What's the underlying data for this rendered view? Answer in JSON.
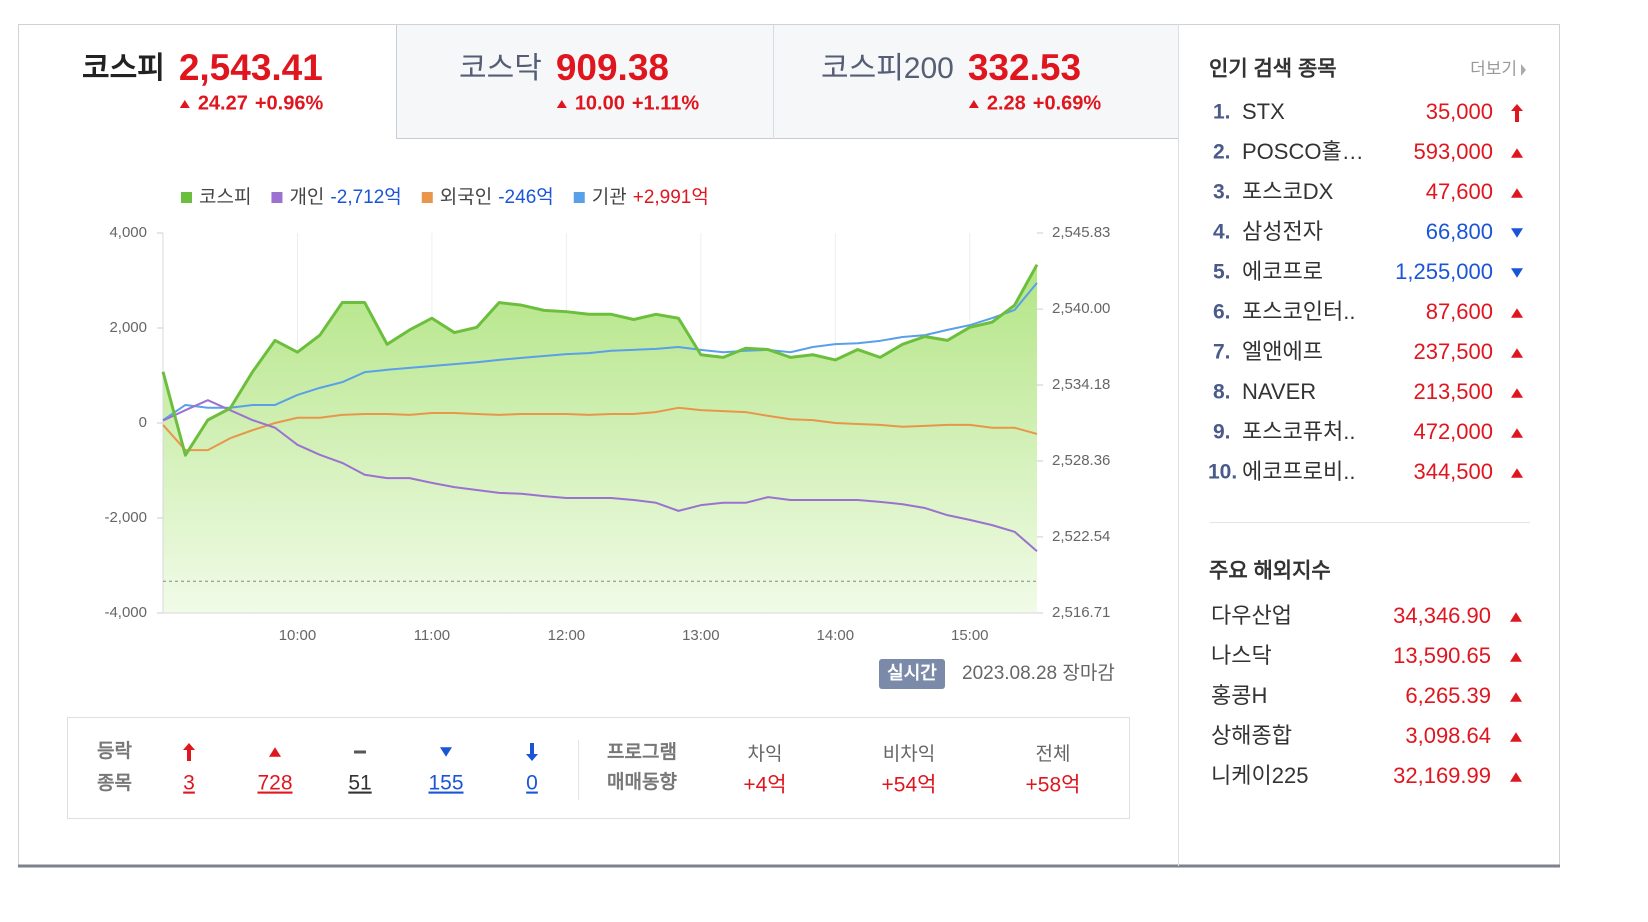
{
  "tabs": [
    {
      "name": "코스피",
      "value": "2,543.41",
      "change": "24.27",
      "rate": "+0.96%"
    },
    {
      "name": "코스닥",
      "value": "909.38",
      "change": "10.00",
      "rate": "+1.11%"
    },
    {
      "name": "코스피200",
      "value": "332.53",
      "change": "2.28",
      "rate": "+0.69%"
    }
  ],
  "chart_data": {
    "type": "line",
    "categories": [
      null,
      null,
      null,
      null,
      null,
      null,
      "10:00",
      null,
      null,
      null,
      null,
      null,
      "11:00",
      null,
      null,
      null,
      null,
      null,
      "12:00",
      null,
      null,
      null,
      null,
      null,
      "13:00",
      null,
      null,
      null,
      null,
      null,
      "14:00",
      null,
      null,
      null,
      null,
      null,
      "15:00",
      null,
      null,
      null
    ],
    "series": [
      {
        "name": "코스피",
        "legend_value": null,
        "color": "#6cbf3c",
        "axis": "y2",
        "values": [
          2535.2,
          2528.8,
          2531.5,
          2532.4,
          2535.2,
          2537.6,
          2536.7,
          2538.0,
          2540.5,
          2540.5,
          2537.3,
          2538.4,
          2539.3,
          2538.2,
          2538.6,
          2540.5,
          2540.3,
          2539.9,
          2539.8,
          2539.6,
          2539.6,
          2539.2,
          2539.6,
          2539.3,
          2536.5,
          2536.3,
          2537.0,
          2536.9,
          2536.3,
          2536.5,
          2536.1,
          2536.9,
          2536.3,
          2537.3,
          2537.9,
          2537.6,
          2538.6,
          2539.0,
          2540.3,
          2543.4
        ]
      },
      {
        "name": "개인",
        "legend_value": "-2,712억",
        "color": "#9b72cf",
        "values": [
          50,
          270,
          480,
          270,
          60,
          -100,
          -460,
          -670,
          -840,
          -1090,
          -1160,
          -1160,
          -1260,
          -1350,
          -1410,
          -1470,
          -1490,
          -1540,
          -1580,
          -1580,
          -1580,
          -1620,
          -1680,
          -1850,
          -1730,
          -1680,
          -1680,
          -1560,
          -1620,
          -1620,
          -1620,
          -1620,
          -1660,
          -1710,
          -1790,
          -1940,
          -2040,
          -2150,
          -2290,
          -2700
        ]
      },
      {
        "name": "외국인",
        "legend_value": "-246억",
        "color": "#e8964a",
        "values": [
          -40,
          -570,
          -570,
          -320,
          -150,
          0,
          110,
          110,
          170,
          190,
          190,
          170,
          210,
          210,
          190,
          170,
          190,
          190,
          190,
          170,
          190,
          190,
          230,
          320,
          270,
          250,
          230,
          150,
          80,
          60,
          0,
          -20,
          -40,
          -80,
          -60,
          -40,
          -40,
          -100,
          -100,
          -230
        ]
      },
      {
        "name": "기관",
        "legend_value": "+2,991억",
        "color": "#5aa0e8",
        "values": [
          60,
          380,
          320,
          320,
          380,
          380,
          590,
          740,
          860,
          1070,
          1120,
          1160,
          1200,
          1240,
          1280,
          1330,
          1370,
          1410,
          1450,
          1470,
          1520,
          1540,
          1560,
          1600,
          1540,
          1490,
          1520,
          1540,
          1490,
          1600,
          1660,
          1680,
          1730,
          1810,
          1850,
          1960,
          2060,
          2210,
          2380,
          2950
        ]
      }
    ],
    "ylim": [
      -4000,
      4000
    ],
    "yticks": [
      {
        "value": 4000,
        "label": "4,000"
      },
      {
        "value": 2000,
        "label": "2,000"
      },
      0,
      {
        "value": -2000,
        "label": "-2,000"
      },
      {
        "value": -4000,
        "label": "-4,000"
      }
    ],
    "y2lim": [
      2516.71,
      2545.83
    ],
    "y2ticks": [
      {
        "value": 2545.83,
        "label": "2,545.83"
      },
      {
        "value": 2540.0,
        "label": "2,540.00"
      },
      {
        "value": 2534.18,
        "label": "2,534.18"
      },
      {
        "value": 2528.36,
        "label": "2,528.36"
      },
      {
        "value": 2522.54,
        "label": "2,522.54"
      },
      {
        "value": 2516.71,
        "label": "2,516.71"
      }
    ],
    "baseline": 2519.14,
    "grid": true
  },
  "status": {
    "badge": "실시간",
    "date": "2023.08.28 장마감"
  },
  "breadth": {
    "title": [
      "등락",
      "종목"
    ],
    "items": [
      {
        "kind": "limit_up",
        "count": 3
      },
      {
        "kind": "up",
        "count": 728
      },
      {
        "kind": "flat",
        "count": 51
      },
      {
        "kind": "down",
        "count": 155
      },
      {
        "kind": "limit_down",
        "count": 0
      }
    ]
  },
  "program": {
    "title": [
      "프로그램",
      "매매동향"
    ],
    "items": [
      {
        "label": "차익",
        "value": "+4억"
      },
      {
        "label": "비차익",
        "value": "+54억"
      },
      {
        "label": "전체",
        "value": "+58억"
      }
    ]
  },
  "popular": {
    "title": "인기 검색 종목",
    "more": "더보기",
    "items": [
      {
        "rank": "1.",
        "name": "STX",
        "price": "35,000",
        "kind": "limit_up"
      },
      {
        "rank": "2.",
        "name": "POSCO홀…",
        "price": "593,000",
        "kind": "up"
      },
      {
        "rank": "3.",
        "name": "포스코DX",
        "price": "47,600",
        "kind": "up"
      },
      {
        "rank": "4.",
        "name": "삼성전자",
        "price": "66,800",
        "kind": "down"
      },
      {
        "rank": "5.",
        "name": "에코프로",
        "price": "1,255,000",
        "kind": "down"
      },
      {
        "rank": "6.",
        "name": "포스코인터..",
        "price": "87,600",
        "kind": "up"
      },
      {
        "rank": "7.",
        "name": "엘앤에프",
        "price": "237,500",
        "kind": "up"
      },
      {
        "rank": "8.",
        "name": "NAVER",
        "price": "213,500",
        "kind": "up"
      },
      {
        "rank": "9.",
        "name": "포스코퓨처..",
        "price": "472,000",
        "kind": "up"
      },
      {
        "rank": "10.",
        "name": "에코프로비..",
        "price": "344,500",
        "kind": "up"
      }
    ]
  },
  "overseas": {
    "title": "주요 해외지수",
    "items": [
      {
        "name": "다우산업",
        "value": "34,346.90",
        "kind": "up"
      },
      {
        "name": "나스닥",
        "value": "13,590.65",
        "kind": "up"
      },
      {
        "name": "홍콩H",
        "value": "6,265.39",
        "kind": "up"
      },
      {
        "name": "상해종합",
        "value": "3,098.64",
        "kind": "up"
      },
      {
        "name": "니케이225",
        "value": "32,169.99",
        "kind": "up"
      }
    ]
  }
}
